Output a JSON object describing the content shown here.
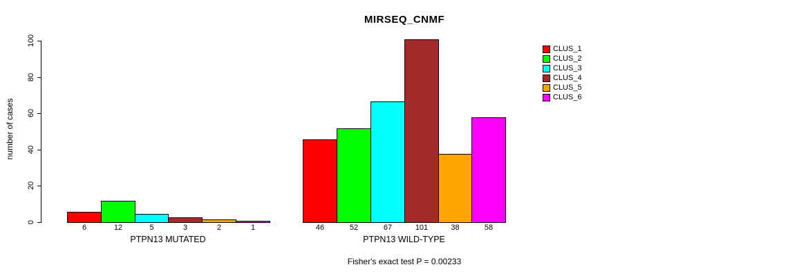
{
  "title": "MIRSEQ_CNMF",
  "footer": "Fisher's exact test P = 0.00233",
  "y_axis": {
    "label": "number of cases",
    "ticks": [
      "0",
      "20",
      "40",
      "60",
      "80",
      "100"
    ]
  },
  "legend": {
    "items": [
      {
        "label": "CLUS_1",
        "color": "#FF0000"
      },
      {
        "label": "CLUS_2",
        "color": "#00FF00"
      },
      {
        "label": "CLUS_3",
        "color": "#00FFFF"
      },
      {
        "label": "CLUS_4",
        "color": "#A52A2A"
      },
      {
        "label": "CLUS_5",
        "color": "#FFA500"
      },
      {
        "label": "CLUS_6",
        "color": "#FF00FF"
      }
    ]
  },
  "chart_data": {
    "type": "bar",
    "title": "MIRSEQ_CNMF",
    "xlabel": "",
    "ylabel": "number of cases",
    "ylim": [
      0,
      100
    ],
    "yticks": [
      0,
      20,
      40,
      60,
      80,
      100
    ],
    "grid": false,
    "legend_position": "right",
    "legend_entries": [
      "CLUS_1",
      "CLUS_2",
      "CLUS_3",
      "CLUS_4",
      "CLUS_5",
      "CLUS_6"
    ],
    "series_colors": [
      "#FF0000",
      "#00FF00",
      "#00FFFF",
      "#A52A2A",
      "#FFA500",
      "#FF00FF"
    ],
    "groups": [
      {
        "label": "PTPN13 MUTATED",
        "categories": [
          "CLUS_1",
          "CLUS_2",
          "CLUS_3",
          "CLUS_4",
          "CLUS_5",
          "CLUS_6"
        ],
        "values": [
          6,
          12,
          5,
          3,
          2,
          1
        ]
      },
      {
        "label": "PTPN13 WILD-TYPE",
        "categories": [
          "CLUS_1",
          "CLUS_2",
          "CLUS_3",
          "CLUS_4",
          "CLUS_5",
          "CLUS_6"
        ],
        "values": [
          46,
          52,
          67,
          101,
          38,
          58
        ]
      }
    ],
    "annotation": "Fisher's exact test P = 0.00233"
  }
}
